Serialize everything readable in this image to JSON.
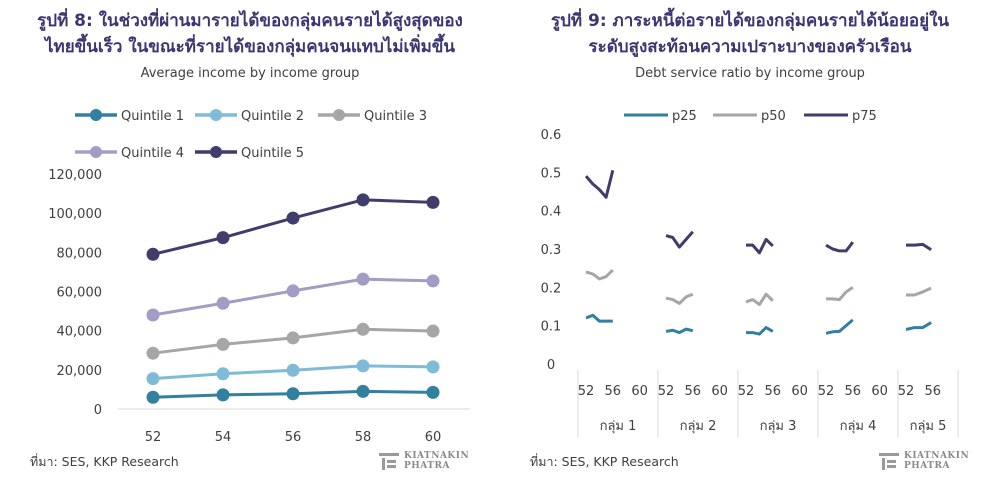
{
  "left_panel": {
    "title_line1": "รูปที่ 8: ในช่วงที่ผ่านมารายได้ของกลุ่มคนรายได้สูงสุดของ",
    "title_line2": "ไทยขึ้นเร็ว ในขณะที่รายได้ของกลุ่มคนจนแทบไม่เพิ่มขึ้น",
    "subtitle": "Average income by income group",
    "source": "ที่มา: SES, KKP Research"
  },
  "right_panel": {
    "title_line1": "รูปที่ 9: ภาระหนี้ต่อรายได้ของกลุ่มคนรายได้น้อยอยู่ใน",
    "title_line2": "ระดับสูงสะท้อนความเปราะบางของครัวเรือน",
    "subtitle": "Debt service ratio by income group",
    "source": "ที่มา: SES, KKP Research"
  },
  "logo": {
    "line1": "KIATNAKIN",
    "line2": "PHATRA",
    "color": "#8a8a8a"
  },
  "chart_data": [
    {
      "type": "line",
      "title": "Average income by income group",
      "x": [
        "52",
        "54",
        "56",
        "58",
        "60"
      ],
      "ylim": [
        0,
        120000
      ],
      "yticks": [
        "0",
        "20,000",
        "40,000",
        "60,000",
        "80,000",
        "100,000",
        "120,000"
      ],
      "grid": false,
      "legend_position": "top",
      "series": [
        {
          "name": "Quintile 1",
          "color": "#31809f",
          "values": [
            6000,
            7200,
            7800,
            9000,
            8500
          ]
        },
        {
          "name": "Quintile 2",
          "color": "#7fbbd6",
          "values": [
            15500,
            18000,
            19800,
            22000,
            21500
          ]
        },
        {
          "name": "Quintile 3",
          "color": "#a6a6a6",
          "values": [
            28500,
            33000,
            36300,
            40700,
            39800
          ]
        },
        {
          "name": "Quintile 4",
          "color": "#a39dc5",
          "values": [
            48000,
            54000,
            60300,
            66300,
            65400
          ]
        },
        {
          "name": "Quintile 5",
          "color": "#403c6c",
          "values": [
            79000,
            87500,
            97500,
            106800,
            105500
          ]
        }
      ]
    },
    {
      "type": "line",
      "title": "Debt service ratio by income group",
      "groups": [
        {
          "label": "กลุ่ม 1",
          "ticks": [
            "52",
            "56",
            "60"
          ]
        },
        {
          "label": "กลุ่ม 2",
          "ticks": [
            "52",
            "56",
            "60"
          ]
        },
        {
          "label": "กลุ่ม 3",
          "ticks": [
            "52",
            "56",
            "60"
          ]
        },
        {
          "label": "กลุ่ม 4",
          "ticks": [
            "52",
            "56",
            "60"
          ]
        },
        {
          "label": "กลุ่ม 5",
          "ticks": [
            "52",
            "56"
          ]
        }
      ],
      "ylim": [
        0,
        0.6
      ],
      "yticks": [
        "0",
        "0.1",
        "0.2",
        "0.3",
        "0.4",
        "0.5",
        "0.6"
      ],
      "grid": false,
      "legend_position": "top",
      "series": [
        {
          "name": "p25",
          "color": "#31809f",
          "groups": [
            [
              0.12,
              0.127,
              0.112,
              0.112,
              0.112
            ],
            [
              0.085,
              0.088,
              0.082,
              0.091,
              0.087
            ],
            [
              0.082,
              0.082,
              0.078,
              0.095,
              0.085
            ],
            [
              0.08,
              0.084,
              0.085,
              0.1,
              0.115
            ],
            [
              0.09,
              0.095,
              0.095,
              0.108
            ]
          ]
        },
        {
          "name": "p50",
          "color": "#a6a6a6",
          "groups": [
            [
              0.24,
              0.235,
              0.222,
              0.228,
              0.245
            ],
            [
              0.172,
              0.168,
              0.158,
              0.175,
              0.182
            ],
            [
              0.162,
              0.168,
              0.155,
              0.182,
              0.165
            ],
            [
              0.17,
              0.17,
              0.168,
              0.188,
              0.2
            ],
            [
              0.18,
              0.18,
              0.188,
              0.198
            ]
          ]
        },
        {
          "name": "p75",
          "color": "#403c6c",
          "groups": [
            [
              0.49,
              0.47,
              0.455,
              0.435,
              0.505
            ],
            [
              0.335,
              0.33,
              0.305,
              0.325,
              0.345
            ],
            [
              0.31,
              0.31,
              0.29,
              0.325,
              0.308
            ],
            [
              0.31,
              0.3,
              0.295,
              0.295,
              0.318
            ],
            [
              0.31,
              0.31,
              0.312,
              0.298
            ]
          ]
        }
      ]
    }
  ]
}
